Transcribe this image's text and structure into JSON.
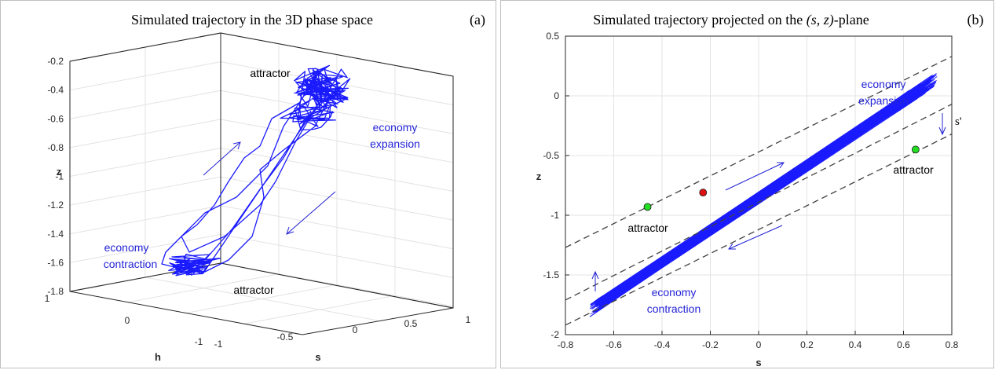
{
  "colors": {
    "trajectory": "#1a1aff",
    "annotation_blue": "#2424d6",
    "attractor_green": "#22dd22",
    "equilibrium_red": "#dd1111",
    "dashed": "#404040",
    "grid": "#e3e3e3"
  },
  "chart_data": [
    {
      "type": "line",
      "projection": "3d",
      "title": "Simulated trajectory in the 3D phase space",
      "panel_label": "(a)",
      "xlabel": "s",
      "ylabel": "h",
      "zlabel": "z",
      "xlim": [
        -1,
        1
      ],
      "ylim": [
        -1,
        1
      ],
      "zlim": [
        -1.8,
        -0.2
      ],
      "x_ticks": [
        "-1",
        "-0.5",
        "0",
        "0.5",
        "1"
      ],
      "y_ticks": [
        "-1",
        "0",
        "1"
      ],
      "z_ticks": [
        "-0.2",
        "-0.4",
        "-0.6",
        "-0.8",
        "-1",
        "-1.2",
        "-1.4",
        "-1.6",
        "-1.8"
      ],
      "grid": true,
      "annotations": {
        "attractor_top": "attractor",
        "attractor_bottom": "attractor",
        "expansion_line1": "economy",
        "expansion_line2": "expansion",
        "contraction_line1": "economy",
        "contraction_line2": "contraction"
      }
    },
    {
      "type": "line",
      "title_prefix": "Simulated trajectory projected on the ",
      "title_math": "(s, z)",
      "title_suffix": "-plane",
      "panel_label": "(b)",
      "xlabel": "s",
      "ylabel": "z",
      "xlim": [
        -0.8,
        0.8
      ],
      "ylim": [
        -2,
        0.5
      ],
      "x_ticks": [
        "-0.8",
        "-0.6",
        "-0.4",
        "-0.2",
        "0",
        "0.2",
        "0.4",
        "0.6",
        "0.8"
      ],
      "y_ticks": [
        "0.5",
        "0",
        "-0.5",
        "-1",
        "-1.5",
        "-2"
      ],
      "grid": true,
      "band": {
        "slope": 1.4,
        "lower_intercept": -1.3,
        "upper_intercept": -0.9
      },
      "dashed_lines": [
        {
          "x": [
            -0.8,
            0.8
          ],
          "y": [
            -1.27,
            0.33
          ]
        },
        {
          "x": [
            -0.8,
            0.8
          ],
          "y": [
            -1.71,
            -0.07
          ]
        },
        {
          "x": [
            -0.8,
            0.8
          ],
          "y": [
            -1.92,
            -0.32
          ]
        }
      ],
      "points": [
        {
          "name": "attractor",
          "x": -0.46,
          "y": -0.93,
          "color": "green"
        },
        {
          "name": "equilibrium",
          "x": -0.23,
          "y": -0.81,
          "color": "red"
        },
        {
          "name": "attractor",
          "x": 0.65,
          "y": -0.45,
          "color": "green"
        }
      ],
      "annotations": {
        "attractor_left": "attractor",
        "attractor_right": "attractor",
        "expansion_line1": "economy",
        "expansion_line2": "expansion",
        "contraction_line1": "economy",
        "contraction_line2": "contraction",
        "s_prime": "s'"
      }
    }
  ]
}
